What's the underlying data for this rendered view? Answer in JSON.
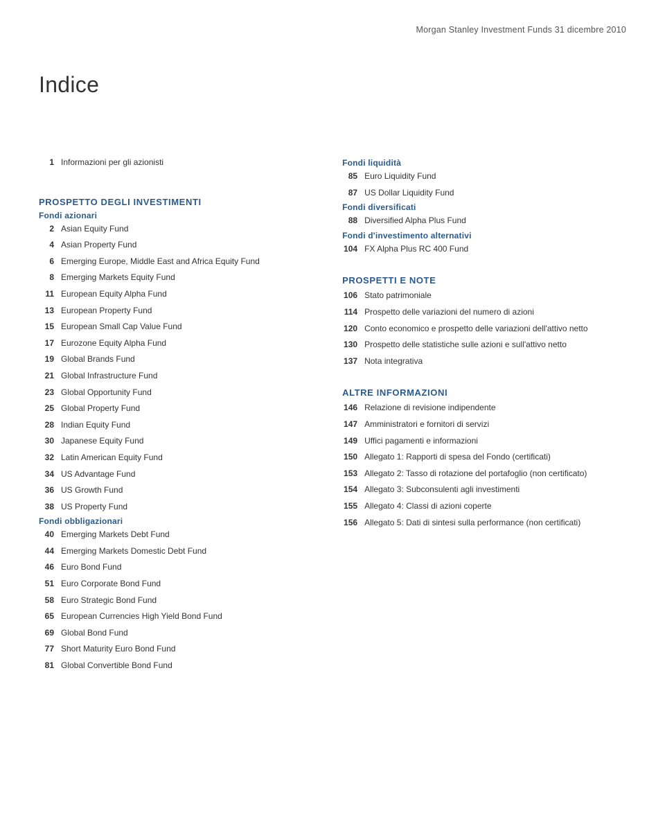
{
  "header": {
    "text": "Morgan Stanley Investment Funds   31 dicembre 2010"
  },
  "title": "Indice",
  "intro": {
    "num": "1",
    "label": "Informazioni per gli azionisti"
  },
  "left": {
    "section_head": "PROSPETTO DEGLI INVESTIMENTI",
    "groups": [
      {
        "sub_head": "Fondi azionari",
        "items": [
          {
            "num": "2",
            "label": "Asian Equity Fund"
          },
          {
            "num": "4",
            "label": "Asian Property Fund"
          },
          {
            "num": "6",
            "label": "Emerging Europe, Middle East and Africa Equity Fund"
          },
          {
            "num": "8",
            "label": "Emerging Markets Equity Fund"
          },
          {
            "num": "11",
            "label": "European Equity Alpha Fund"
          },
          {
            "num": "13",
            "label": "European Property Fund"
          },
          {
            "num": "15",
            "label": "European Small Cap Value Fund"
          },
          {
            "num": "17",
            "label": "Eurozone Equity Alpha Fund"
          },
          {
            "num": "19",
            "label": "Global Brands Fund"
          },
          {
            "num": "21",
            "label": "Global Infrastructure Fund"
          },
          {
            "num": "23",
            "label": "Global Opportunity Fund"
          },
          {
            "num": "25",
            "label": "Global Property Fund"
          },
          {
            "num": "28",
            "label": "Indian Equity Fund"
          },
          {
            "num": "30",
            "label": "Japanese Equity Fund"
          },
          {
            "num": "32",
            "label": "Latin American Equity Fund"
          },
          {
            "num": "34",
            "label": "US Advantage Fund"
          },
          {
            "num": "36",
            "label": "US Growth Fund"
          },
          {
            "num": "38",
            "label": "US Property Fund"
          }
        ]
      },
      {
        "sub_head": "Fondi obbligazionari",
        "items": [
          {
            "num": "40",
            "label": "Emerging Markets Debt Fund"
          },
          {
            "num": "44",
            "label": "Emerging Markets Domestic Debt Fund"
          },
          {
            "num": "46",
            "label": "Euro Bond Fund"
          },
          {
            "num": "51",
            "label": "Euro Corporate Bond Fund"
          },
          {
            "num": "58",
            "label": "Euro Strategic Bond Fund"
          },
          {
            "num": "65",
            "label": "European Currencies High Yield Bond Fund"
          },
          {
            "num": "69",
            "label": "Global Bond Fund"
          },
          {
            "num": "77",
            "label": "Short Maturity Euro Bond Fund"
          },
          {
            "num": "81",
            "label": "Global Convertible Bond Fund"
          }
        ]
      }
    ]
  },
  "right": {
    "groups_top": [
      {
        "sub_head": "Fondi liquidità",
        "items": [
          {
            "num": "85",
            "label": "Euro Liquidity Fund"
          },
          {
            "num": "87",
            "label": "US Dollar Liquidity Fund"
          }
        ]
      },
      {
        "sub_head": "Fondi diversificati",
        "items": [
          {
            "num": "88",
            "label": "Diversified Alpha Plus Fund"
          }
        ]
      },
      {
        "sub_head": "Fondi d'investimento alternativi",
        "items": [
          {
            "num": "104",
            "label": "FX Alpha Plus RC 400 Fund"
          }
        ]
      }
    ],
    "section_prospetti": {
      "head": "PROSPETTI E NOTE",
      "items": [
        {
          "num": "106",
          "label": "Stato patrimoniale"
        },
        {
          "num": "114",
          "label": "Prospetto delle variazioni del numero di azioni"
        },
        {
          "num": "120",
          "label": "Conto economico e prospetto delle variazioni dell'attivo netto"
        },
        {
          "num": "130",
          "label": "Prospetto delle statistiche sulle azioni e sull'attivo netto"
        },
        {
          "num": "137",
          "label": "Nota integrativa"
        }
      ]
    },
    "section_altre": {
      "head": "ALTRE INFORMAZIONI",
      "items": [
        {
          "num": "146",
          "label": "Relazione di revisione indipendente"
        },
        {
          "num": "147",
          "label": "Amministratori e fornitori di servizi"
        },
        {
          "num": "149",
          "label": "Uffici pagamenti e informazioni"
        },
        {
          "num": "150",
          "label": "Allegato 1: Rapporti di spesa del Fondo (certificati)"
        },
        {
          "num": "153",
          "label": "Allegato 2: Tasso di rotazione del portafoglio (non certificato)"
        },
        {
          "num": "154",
          "label": "Allegato 3: Subconsulenti agli investimenti"
        },
        {
          "num": "155",
          "label": "Allegato 4: Classi di azioni coperte"
        },
        {
          "num": "156",
          "label": "Allegato 5: Dati di sintesi sulla performance (non certificati)"
        }
      ]
    }
  },
  "colors": {
    "heading_blue": "#2b5a8a",
    "text": "#333333",
    "bg": "#ffffff"
  }
}
